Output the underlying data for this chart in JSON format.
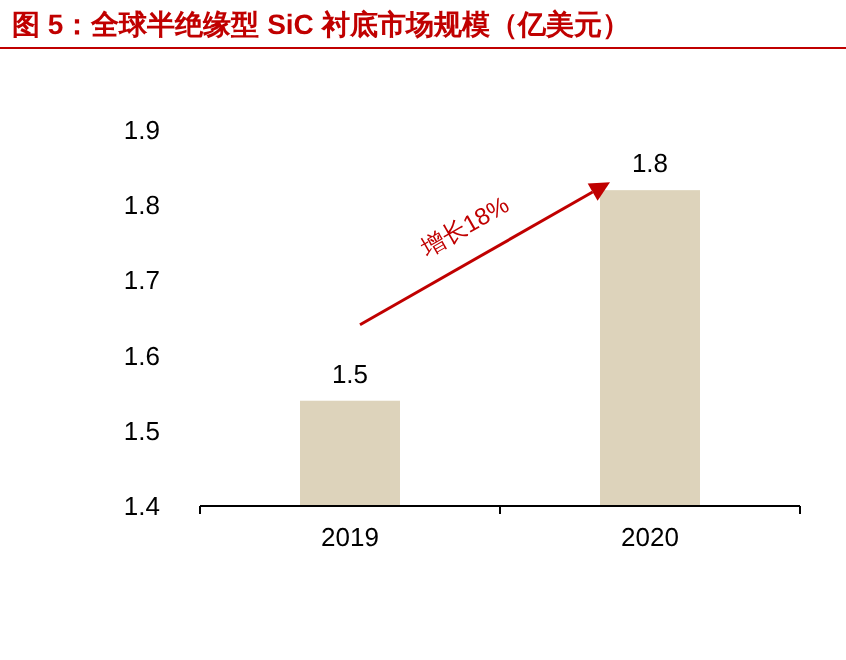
{
  "chart_data": {
    "type": "bar",
    "title": "图 5：全球半绝缘型 SiC 衬底市场规模（亿美元）",
    "categories": [
      "2019",
      "2020"
    ],
    "values": [
      1.54,
      1.82
    ],
    "value_labels": [
      "1.5",
      "1.8"
    ],
    "color": "#ddd3bb",
    "ylim": [
      1.4,
      1.9
    ],
    "yticks": [
      1.4,
      1.5,
      1.6,
      1.7,
      1.8,
      1.9
    ],
    "annotations": [
      "增长18%"
    ],
    "grid": false
  }
}
